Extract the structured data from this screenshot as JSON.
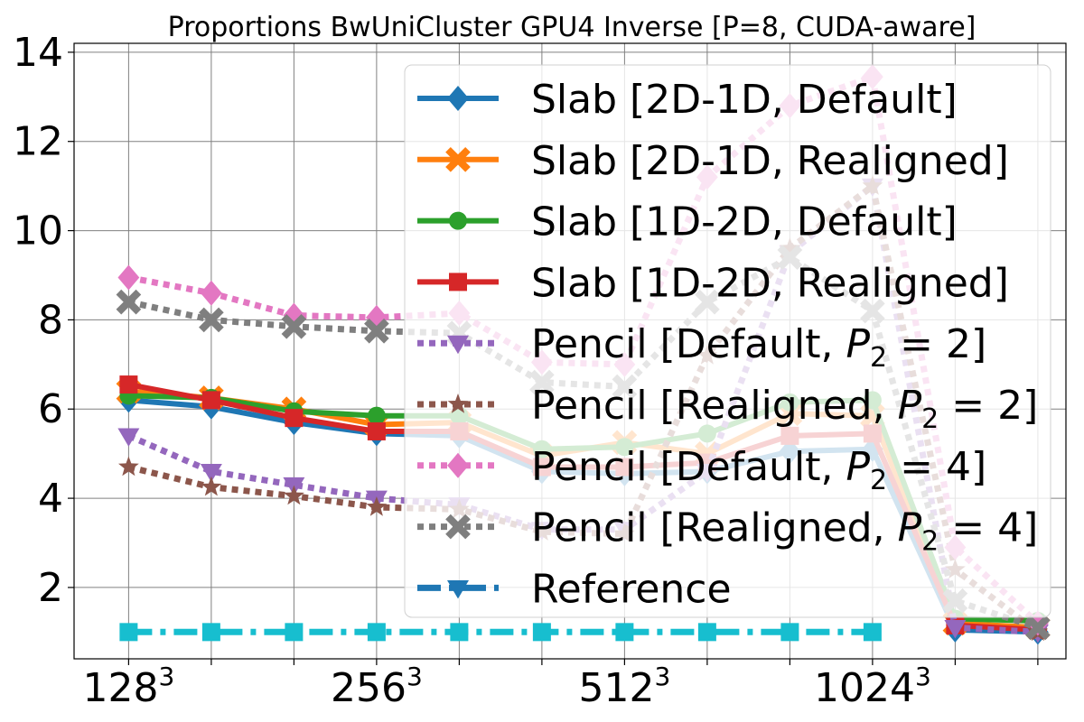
{
  "chart_data": {
    "type": "line",
    "title": "Proportions BwUniCluster GPU4 Inverse [P=8, CUDA-aware]",
    "xlabel": "",
    "ylabel": "",
    "x_count": 12,
    "x_tick_labels": [
      {
        "index": 0,
        "base": "128",
        "sup": "3"
      },
      {
        "index": 3,
        "base": "256",
        "sup": "3"
      },
      {
        "index": 6,
        "base": "512",
        "sup": "3"
      },
      {
        "index": 9,
        "base": "1024",
        "sup": "3"
      }
    ],
    "ylim": [
      0.4,
      14.2
    ],
    "y_ticks": [
      2,
      4,
      6,
      8,
      10,
      12,
      14
    ],
    "grid": true,
    "legend_placement": "upper-right",
    "series": [
      {
        "name": "Slab [2D-1D, Default]",
        "legend": {
          "pre": "Slab [2D-1D, Default]"
        },
        "color": "#1f77b4",
        "marker": "diamond",
        "dash": "solid",
        "values": [
          6.2,
          6.05,
          5.7,
          5.45,
          5.4,
          4.6,
          4.55,
          4.6,
          5.05,
          5.1,
          1.05,
          1.0
        ]
      },
      {
        "name": "Slab [2D-1D, Realigned]",
        "legend": {
          "pre": "Slab [2D-1D, Realigned]"
        },
        "color": "#ff7f0e",
        "marker": "x-filled",
        "dash": "solid",
        "values": [
          6.4,
          6.25,
          6.0,
          5.65,
          5.7,
          4.95,
          5.25,
          5.0,
          5.9,
          5.85,
          1.2,
          1.1
        ]
      },
      {
        "name": "Slab [1D-2D, Default]",
        "legend": {
          "pre": "Slab [1D-2D, Default]"
        },
        "color": "#2ca02c",
        "marker": "circle",
        "dash": "solid",
        "values": [
          6.3,
          6.25,
          5.95,
          5.85,
          5.85,
          5.1,
          5.15,
          5.45,
          6.15,
          6.2,
          1.3,
          1.25
        ]
      },
      {
        "name": "Slab [1D-2D, Realigned]",
        "legend": {
          "pre": "Slab [1D-2D, Realigned]"
        },
        "color": "#d62728",
        "marker": "square",
        "dash": "solid",
        "values": [
          6.55,
          6.2,
          5.8,
          5.5,
          5.5,
          4.7,
          4.7,
          4.8,
          5.4,
          5.45,
          1.15,
          1.05
        ]
      },
      {
        "name": "Pencil [Default, P2 = 2]",
        "legend": {
          "pre": "Pencil [Default, ",
          "var": "P",
          "sub": "2",
          "post": " = 2]"
        },
        "color": "#9467bd",
        "marker": "triangle-down",
        "dash": "dot",
        "values": [
          5.4,
          4.6,
          4.3,
          4.0,
          3.85,
          3.3,
          3.3,
          4.6,
          9.5,
          11.0,
          1.1,
          1.0
        ]
      },
      {
        "name": "Pencil [Realigned, P2 = 2]",
        "legend": {
          "pre": "Pencil [Realigned, ",
          "var": "P",
          "sub": "2",
          "post": " = 2]"
        },
        "color": "#8c564b",
        "marker": "star",
        "dash": "dot",
        "values": [
          4.7,
          4.25,
          4.05,
          3.8,
          3.75,
          3.25,
          3.2,
          7.2,
          9.6,
          11.0,
          2.4,
          1.0
        ]
      },
      {
        "name": "Pencil [Default, P2 = 4]",
        "legend": {
          "pre": "Pencil [Default, ",
          "var": "P",
          "sub": "2",
          "post": " = 4]"
        },
        "color": "#e377c2",
        "marker": "diamond",
        "dash": "dot",
        "values": [
          8.95,
          8.6,
          8.1,
          8.05,
          8.15,
          7.05,
          7.0,
          11.2,
          12.8,
          13.45,
          2.9,
          1.2
        ]
      },
      {
        "name": "Pencil [Realigned, P2 = 4]",
        "legend": {
          "pre": "Pencil [Realigned, ",
          "var": "P",
          "sub": "2",
          "post": " = 4]"
        },
        "color": "#7f7f7f",
        "marker": "x-filled",
        "dash": "dot",
        "values": [
          8.4,
          8.0,
          7.85,
          7.75,
          7.7,
          6.6,
          6.5,
          8.4,
          9.4,
          8.2,
          1.7,
          1.1
        ]
      },
      {
        "name": "Reference",
        "legend": {
          "pre": "Reference"
        },
        "color": "#17becf",
        "legend_color": "#1f77b4",
        "marker": "square",
        "legend_marker": "triangle-down",
        "dash": "dashdot",
        "values": [
          1.0,
          1.0,
          1.0,
          1.0,
          1.0,
          1.0,
          1.0,
          1.0,
          1.0,
          1.0,
          null,
          null
        ]
      }
    ]
  }
}
